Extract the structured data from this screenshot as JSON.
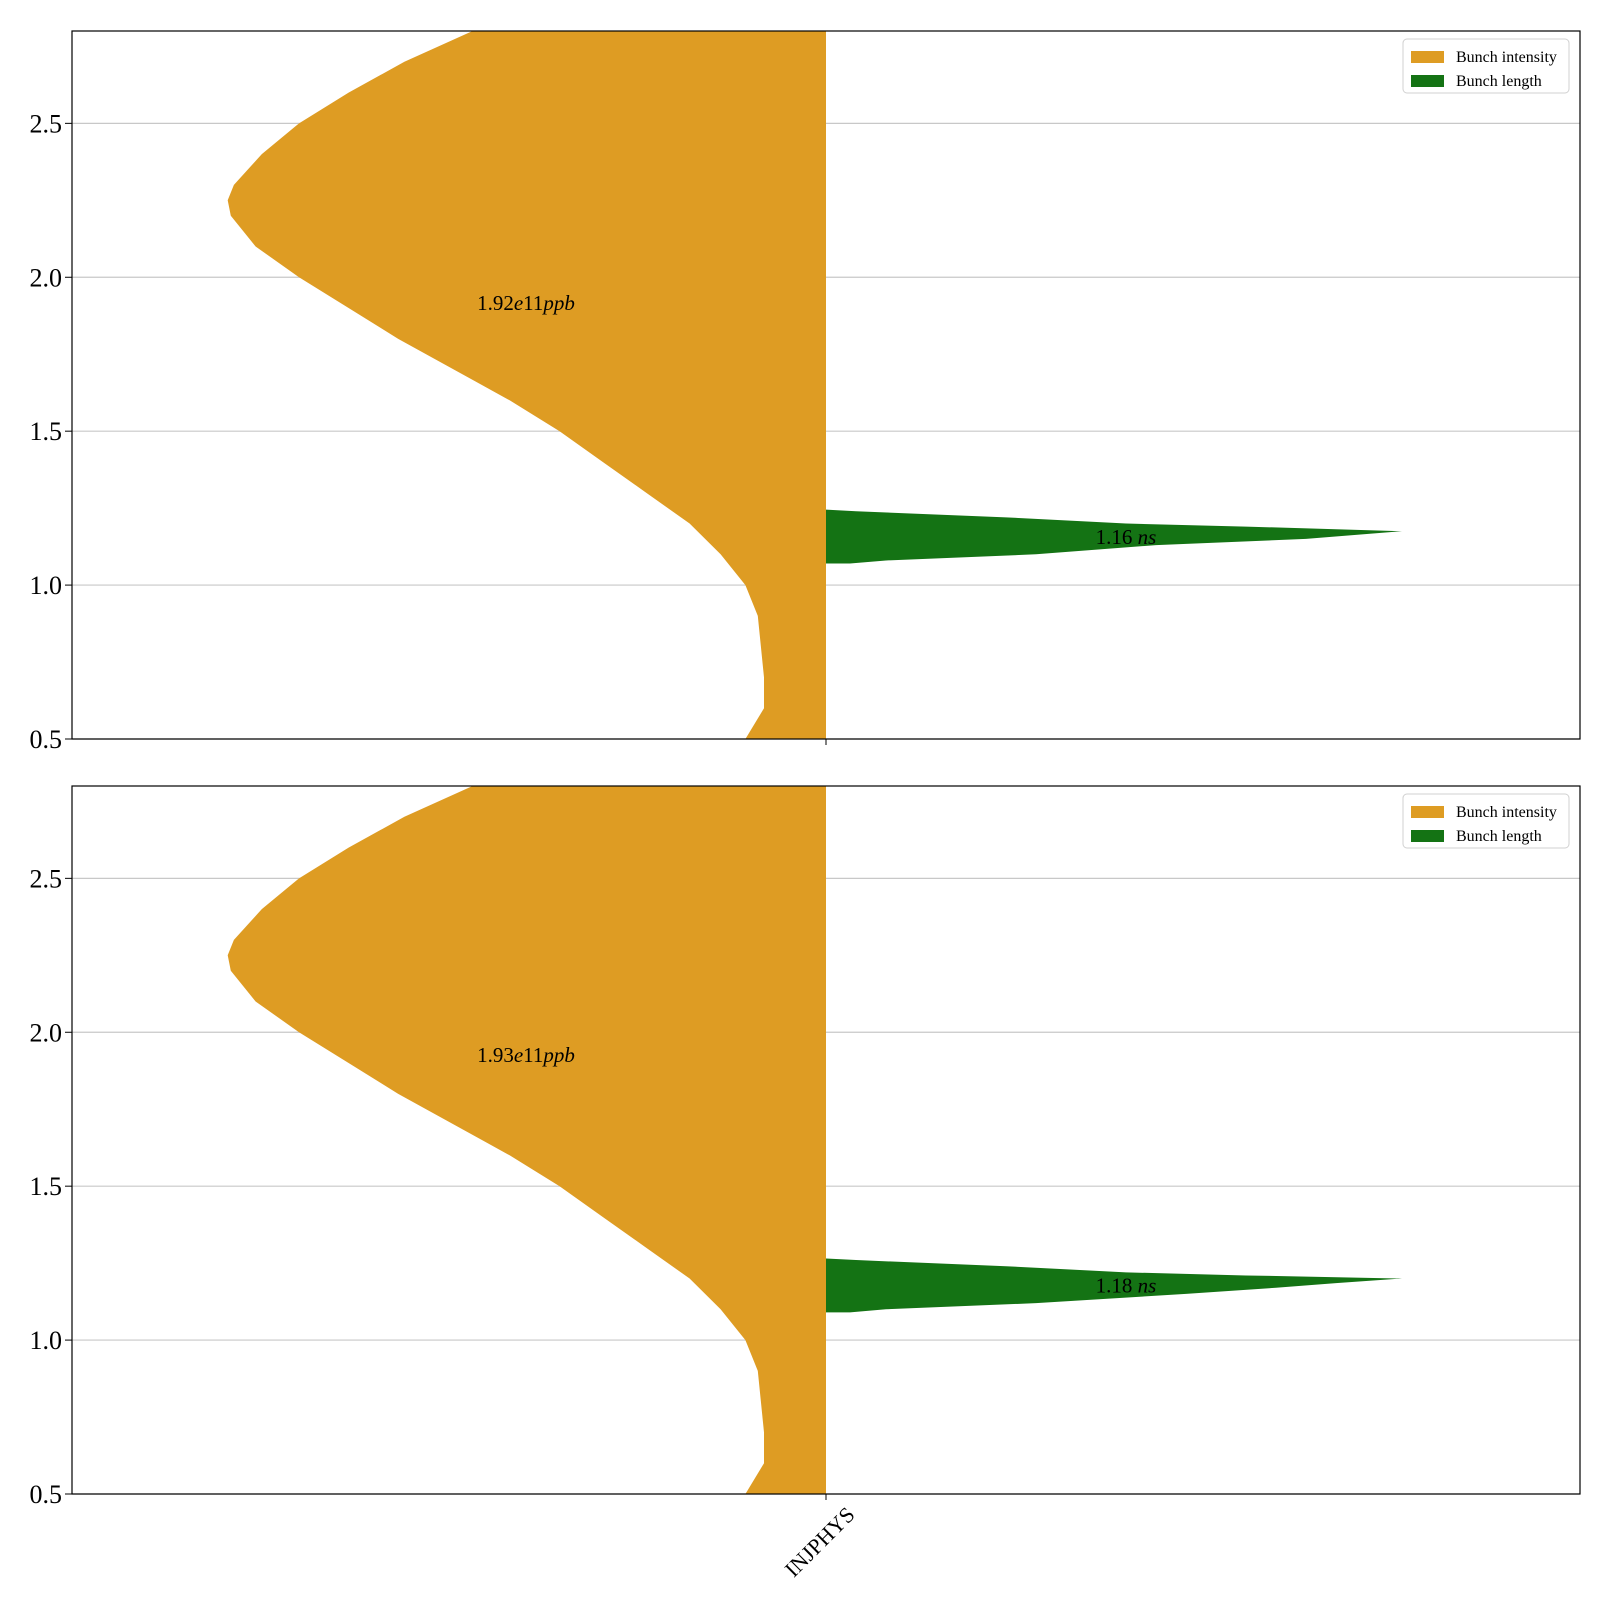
{
  "chart_data": [
    {
      "type": "violin",
      "categories": [
        "INJPHYS"
      ],
      "yticks": [
        "0.5",
        "1.0",
        "1.5",
        "2.0",
        "2.5"
      ],
      "ylim": [
        0.5,
        2.8
      ],
      "grid": "horizontal",
      "legend": {
        "placement": "top-right",
        "entries": [
          {
            "label": "Bunch intensity",
            "color": "#de9c23"
          },
          {
            "label": "Bunch length",
            "color": "#147314"
          }
        ]
      },
      "series": [
        {
          "name": "Bunch intensity",
          "side": "left",
          "color": "#de9c23",
          "annotation": {
            "prefix": "1.92",
            "mid": "e",
            "num": "11",
            "unit": "ppb"
          },
          "annotation_y": 1.92,
          "density_profile": [
            [
              0.5,
              0.13
            ],
            [
              0.6,
              0.1
            ],
            [
              0.7,
              0.1
            ],
            [
              0.8,
              0.105
            ],
            [
              0.9,
              0.11
            ],
            [
              1.0,
              0.13
            ],
            [
              1.1,
              0.17
            ],
            [
              1.2,
              0.22
            ],
            [
              1.3,
              0.29
            ],
            [
              1.4,
              0.36
            ],
            [
              1.5,
              0.43
            ],
            [
              1.6,
              0.51
            ],
            [
              1.7,
              0.6
            ],
            [
              1.8,
              0.69
            ],
            [
              1.9,
              0.77
            ],
            [
              2.0,
              0.85
            ],
            [
              2.1,
              0.92
            ],
            [
              2.2,
              0.96
            ],
            [
              2.25,
              0.965
            ],
            [
              2.3,
              0.955
            ],
            [
              2.4,
              0.91
            ],
            [
              2.5,
              0.85
            ],
            [
              2.6,
              0.77
            ],
            [
              2.7,
              0.68
            ],
            [
              2.8,
              0.57
            ]
          ]
        },
        {
          "name": "Bunch length",
          "side": "right",
          "color": "#147314",
          "annotation": {
            "prefix": "1.16 ",
            "unit": "ns"
          },
          "annotation_y": 1.16,
          "density_profile": [
            [
              1.07,
              0.04
            ],
            [
              1.08,
              0.1
            ],
            [
              1.1,
              0.35
            ],
            [
              1.13,
              0.55
            ],
            [
              1.15,
              0.8
            ],
            [
              1.175,
              0.96
            ],
            [
              1.19,
              0.7
            ],
            [
              1.2,
              0.5
            ],
            [
              1.22,
              0.3
            ],
            [
              1.24,
              0.05
            ],
            [
              1.245,
              0.0
            ]
          ]
        }
      ]
    },
    {
      "type": "violin",
      "categories": [
        "INJPHYS"
      ],
      "yticks": [
        "0.5",
        "1.0",
        "1.5",
        "2.0",
        "2.5"
      ],
      "ylim": [
        0.5,
        2.8
      ],
      "grid": "horizontal",
      "legend": {
        "placement": "top-right",
        "entries": [
          {
            "label": "Bunch intensity",
            "color": "#de9c23"
          },
          {
            "label": "Bunch length",
            "color": "#147314"
          }
        ]
      },
      "series": [
        {
          "name": "Bunch intensity",
          "side": "left",
          "color": "#de9c23",
          "annotation": {
            "prefix": "1.93",
            "mid": "e",
            "num": "11",
            "unit": "ppb"
          },
          "annotation_y": 1.93,
          "density_profile": [
            [
              0.5,
              0.13
            ],
            [
              0.6,
              0.1
            ],
            [
              0.7,
              0.1
            ],
            [
              0.8,
              0.105
            ],
            [
              0.9,
              0.11
            ],
            [
              1.0,
              0.13
            ],
            [
              1.1,
              0.17
            ],
            [
              1.2,
              0.22
            ],
            [
              1.3,
              0.29
            ],
            [
              1.4,
              0.36
            ],
            [
              1.5,
              0.43
            ],
            [
              1.6,
              0.51
            ],
            [
              1.7,
              0.6
            ],
            [
              1.8,
              0.69
            ],
            [
              1.9,
              0.77
            ],
            [
              2.0,
              0.85
            ],
            [
              2.1,
              0.92
            ],
            [
              2.2,
              0.96
            ],
            [
              2.25,
              0.965
            ],
            [
              2.3,
              0.955
            ],
            [
              2.4,
              0.91
            ],
            [
              2.5,
              0.85
            ],
            [
              2.6,
              0.77
            ],
            [
              2.7,
              0.68
            ],
            [
              2.8,
              0.57
            ]
          ]
        },
        {
          "name": "Bunch length",
          "side": "right",
          "color": "#147314",
          "annotation": {
            "prefix": "1.18 ",
            "unit": "ns"
          },
          "annotation_y": 1.18,
          "density_profile": [
            [
              1.09,
              0.04
            ],
            [
              1.1,
              0.1
            ],
            [
              1.12,
              0.35
            ],
            [
              1.15,
              0.6
            ],
            [
              1.17,
              0.75
            ],
            [
              1.185,
              0.85
            ],
            [
              1.2,
              0.96
            ],
            [
              1.21,
              0.7
            ],
            [
              1.22,
              0.5
            ],
            [
              1.24,
              0.3
            ],
            [
              1.26,
              0.05
            ],
            [
              1.265,
              0.0
            ]
          ]
        }
      ]
    }
  ]
}
